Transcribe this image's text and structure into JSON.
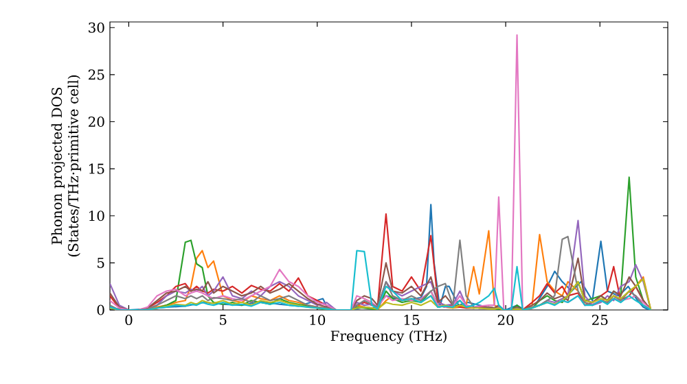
{
  "chart_data": {
    "type": "line",
    "xlabel": "Frequency (THz)",
    "ylabel": "Phonon projected DOS (States/THz·primitive cell)",
    "xlim": [
      -1,
      28.6
    ],
    "ylim": [
      0,
      30.6
    ],
    "xticks": [
      0,
      5,
      10,
      15,
      20,
      25
    ],
    "yticks": [
      0,
      5,
      10,
      15,
      20,
      25,
      30
    ],
    "series": [
      {
        "color": "#1f77b4",
        "x": [
          -1,
          0,
          1,
          2,
          3,
          4,
          5,
          6,
          7,
          8,
          9,
          10.3,
          10.6,
          11.8,
          12.5,
          13,
          13.65,
          14.5,
          15.5,
          15.8,
          16.03,
          16.2,
          16.5,
          16.8,
          17.0,
          17.5,
          18,
          19,
          19.5,
          20,
          20.6,
          21,
          21.5,
          22.2,
          22.6,
          23,
          23.5,
          24,
          24.6,
          25.05,
          25.4,
          26,
          26.5,
          27,
          27.3,
          27.6
        ],
        "values": [
          0.2,
          0,
          0.1,
          0.3,
          0.4,
          0.8,
          0.6,
          0.5,
          0.9,
          0.6,
          0.4,
          1.2,
          0,
          0,
          0.3,
          0.2,
          1.5,
          1.0,
          1.3,
          2.5,
          11.2,
          5.0,
          0.3,
          2.5,
          2.5,
          0.5,
          0.8,
          0.3,
          0.2,
          0,
          0.5,
          0,
          0.3,
          2.5,
          4.1,
          3.0,
          2.0,
          3.0,
          1.0,
          7.3,
          2.0,
          1.5,
          2.5,
          1.0,
          0.3,
          0
        ]
      },
      {
        "color": "#ff7f0e",
        "x": [
          0.5,
          1,
          1.5,
          2,
          2.5,
          3,
          3.3,
          3.6,
          3.9,
          4.2,
          4.5,
          5,
          5.5,
          6,
          6.5,
          7,
          7.5,
          8,
          8.5,
          9,
          9.5,
          10,
          10.5,
          11,
          11.8,
          12.1,
          12.5,
          12.9,
          13.2,
          13.65,
          14,
          14.5,
          15,
          15.5,
          16.03,
          16.4,
          16.8,
          17.2,
          17.57,
          17.9,
          18.3,
          18.6,
          19.1,
          19.4,
          19.63,
          19.9,
          20.3,
          20.6,
          20.9,
          21.4,
          21.8,
          22.2,
          22.6,
          23.0,
          23.3,
          23.84,
          24.2,
          24.6,
          25.05,
          25.4,
          25.73,
          26.1,
          26.55,
          26.9,
          27.3,
          27.7
        ],
        "values": [
          0,
          0.1,
          0.3,
          0.5,
          0.8,
          1.0,
          2.5,
          5.5,
          6.3,
          4.5,
          5.2,
          1.5,
          1.0,
          0.8,
          1.5,
          1.2,
          1.0,
          1.5,
          1.0,
          0.8,
          0.5,
          0.3,
          0.2,
          0,
          0,
          0.5,
          0.3,
          0.2,
          0,
          1.0,
          1.5,
          1.0,
          1.2,
          0.8,
          1.5,
          0.5,
          0.3,
          0.2,
          0.3,
          0.5,
          4.6,
          1.7,
          8.4,
          0.5,
          0.3,
          0,
          0,
          0,
          0,
          0.5,
          8.0,
          3.0,
          2.0,
          1.5,
          3.0,
          2.0,
          0.8,
          0.5,
          1.0,
          0.8,
          1.5,
          1.0,
          2.0,
          2.5,
          3.5,
          0
        ]
      },
      {
        "color": "#2ca02c",
        "x": [
          -1,
          -0.5,
          0,
          0.5,
          1,
          1.5,
          2,
          2.5,
          3,
          3.3,
          3.6,
          3.9,
          4.2,
          4.5,
          5,
          5.5,
          6,
          6.5,
          7,
          7.5,
          8,
          8.5,
          9,
          9.5,
          10,
          10.5,
          11,
          11.8,
          12.1,
          12.5,
          12.9,
          13.2,
          13.65,
          14,
          14.5,
          15,
          15.5,
          16.03,
          16.4,
          16.8,
          17.2,
          17.57,
          17.9,
          18.3,
          18.6,
          19.1,
          19.4,
          19.63,
          19.9,
          20.3,
          20.6,
          20.9,
          21.4,
          21.8,
          22.2,
          22.6,
          23.0,
          23.3,
          23.84,
          24.2,
          24.6,
          25.05,
          25.4,
          25.73,
          26.1,
          26.55,
          26.9,
          27.3,
          27.7
        ],
        "values": [
          0.3,
          0,
          0,
          0,
          0,
          0.2,
          0.5,
          1.0,
          7.2,
          7.4,
          4.9,
          4.5,
          1.5,
          0.8,
          0.6,
          0.8,
          0.5,
          1.0,
          0.8,
          0.6,
          1.2,
          0.8,
          0.6,
          0.4,
          0.2,
          0,
          0,
          0,
          0.3,
          0.2,
          0.1,
          0,
          2.0,
          1.2,
          0.8,
          1.0,
          0.8,
          2.0,
          0.5,
          0.3,
          0.4,
          0.5,
          0.3,
          0.2,
          0.3,
          0.2,
          0.1,
          0,
          0,
          0,
          0.5,
          0,
          0.2,
          1.0,
          1.5,
          1.0,
          0.8,
          1.5,
          3.0,
          1.0,
          1.2,
          1.5,
          1.0,
          2.0,
          1.5,
          14.1,
          3.5,
          1.0,
          0
        ]
      },
      {
        "color": "#d62728",
        "x": [
          -1,
          -0.5,
          0,
          0.5,
          1,
          1.5,
          2,
          2.5,
          3,
          3.3,
          3.6,
          3.9,
          4.2,
          4.5,
          5,
          5.5,
          6,
          6.5,
          7,
          7.5,
          8,
          8.5,
          9,
          9.5,
          10,
          10.5,
          11,
          11.8,
          12.1,
          12.5,
          12.9,
          13.2,
          13.65,
          14,
          14.5,
          15,
          15.5,
          16.03,
          16.4,
          16.8,
          17.2,
          17.57,
          17.9,
          18.3,
          18.6,
          19.1,
          19.4,
          19.63,
          19.9,
          20.3,
          20.6,
          20.9,
          21.4,
          21.8,
          22.2,
          22.6,
          23.0,
          23.3,
          23.84,
          24.2,
          24.6,
          25.05,
          25.4,
          25.73,
          26.1,
          26.55,
          26.9,
          27.3,
          27.7
        ],
        "values": [
          1.5,
          0.2,
          0,
          0,
          0.2,
          0.8,
          1.5,
          2.5,
          2.8,
          2.0,
          2.5,
          2.0,
          1.8,
          2.2,
          2.0,
          2.5,
          1.8,
          2.6,
          2.2,
          2.0,
          2.8,
          2.0,
          3.4,
          1.5,
          1.0,
          0.5,
          0,
          0,
          0.5,
          0.8,
          0.5,
          0.3,
          10.2,
          2.5,
          2.0,
          3.5,
          2.0,
          7.9,
          1.0,
          0.3,
          0.5,
          0.3,
          0.2,
          0.2,
          0.3,
          0.3,
          0.2,
          0.2,
          0,
          0,
          0.3,
          0,
          0.8,
          1.5,
          2.8,
          1.8,
          2.5,
          1.5,
          1.8,
          0.5,
          0.8,
          1.5,
          2.0,
          4.6,
          1.0,
          1.5,
          2.5,
          1.0,
          0
        ]
      },
      {
        "color": "#9467bd",
        "x": [
          -1,
          -0.5,
          0,
          0.5,
          1,
          1.5,
          2,
          2.5,
          3,
          3.3,
          3.6,
          3.9,
          4.2,
          4.5,
          5,
          5.5,
          6,
          6.5,
          7,
          7.5,
          8,
          8.5,
          9,
          9.5,
          10,
          10.5,
          11,
          11.8,
          12.1,
          12.5,
          12.9,
          13.2,
          13.65,
          14,
          14.5,
          15,
          15.5,
          16.03,
          16.4,
          16.8,
          17.2,
          17.57,
          17.9,
          18.3,
          18.6,
          19.1,
          19.4,
          19.63,
          19.9,
          20.3,
          20.6,
          20.9,
          21.4,
          21.8,
          22.2,
          22.6,
          23.0,
          23.3,
          23.84,
          24.2,
          24.6,
          25.05,
          25.4,
          25.73,
          26.1,
          26.55,
          26.9,
          27.3,
          27.7
        ],
        "values": [
          2.8,
          0.5,
          0,
          0,
          0.1,
          0.5,
          1.5,
          2.0,
          1.8,
          2.2,
          2.0,
          2.5,
          1.5,
          2.0,
          3.5,
          1.5,
          1.2,
          2.0,
          1.5,
          2.5,
          3.0,
          2.5,
          1.5,
          1.0,
          0.5,
          0.8,
          0,
          0,
          0.8,
          0.5,
          0.6,
          0.3,
          3.0,
          2.0,
          1.5,
          2.0,
          2.5,
          3.0,
          0.8,
          0.5,
          0.6,
          2.0,
          0.5,
          0.3,
          0.2,
          0.2,
          0.1,
          0.3,
          0,
          0,
          0.2,
          0,
          0.3,
          0.5,
          1.0,
          0.8,
          1.2,
          1.5,
          9.5,
          1.5,
          0.5,
          0.8,
          1.5,
          1.0,
          2.5,
          3.0,
          4.8,
          3.0,
          0
        ]
      },
      {
        "color": "#8c564b",
        "x": [
          -1,
          -0.5,
          0,
          0.5,
          1,
          1.5,
          2,
          2.5,
          3,
          3.3,
          3.6,
          3.9,
          4.2,
          4.5,
          5,
          5.5,
          6,
          6.5,
          7,
          7.5,
          8,
          8.5,
          9,
          9.5,
          10,
          10.5,
          11,
          11.8,
          12.1,
          12.5,
          12.9,
          13.2,
          13.65,
          14,
          14.5,
          15,
          15.5,
          16.03,
          16.4,
          16.8,
          17.2,
          17.57,
          17.9,
          18.3,
          18.6,
          19.1,
          19.4,
          19.63,
          19.9,
          20.3,
          20.6,
          20.9,
          21.4,
          21.8,
          22.2,
          22.6,
          23.0,
          23.3,
          23.84,
          24.2,
          24.6,
          25.05,
          25.4,
          25.73,
          26.1,
          26.55,
          26.9,
          27.3,
          27.7
        ],
        "values": [
          1.8,
          0.3,
          0,
          0,
          0.2,
          1.0,
          1.8,
          2.0,
          2.5,
          2.0,
          2.2,
          2.0,
          3.0,
          1.8,
          2.5,
          2.0,
          1.5,
          1.8,
          2.5,
          1.8,
          2.2,
          2.8,
          2.0,
          1.2,
          0.6,
          0.3,
          0,
          0,
          1.0,
          1.5,
          1.2,
          0.5,
          5.0,
          2.0,
          1.8,
          2.5,
          1.5,
          3.5,
          0.8,
          1.5,
          0.5,
          1.0,
          0.3,
          0.3,
          0.2,
          0.3,
          0.2,
          0.5,
          0,
          0,
          0.3,
          0,
          0.5,
          1.0,
          1.8,
          1.2,
          1.5,
          1.0,
          5.5,
          1.0,
          0.8,
          1.5,
          1.0,
          2.0,
          1.5,
          3.5,
          2.5,
          1.0,
          0
        ]
      },
      {
        "color": "#e377c2",
        "x": [
          -1,
          -0.5,
          0,
          0.5,
          1,
          1.5,
          2,
          2.5,
          3,
          3.3,
          3.6,
          3.9,
          4.2,
          4.5,
          5,
          5.5,
          6,
          6.5,
          7,
          7.5,
          8,
          8.5,
          9,
          9.5,
          10,
          10.5,
          11,
          11.8,
          12.1,
          12.5,
          12.9,
          13.2,
          13.65,
          14,
          14.5,
          15,
          15.5,
          16.03,
          16.4,
          16.8,
          17.2,
          17.57,
          17.9,
          18.3,
          18.6,
          19.1,
          19.4,
          19.63,
          19.9,
          20.3,
          20.6,
          20.9,
          21.4,
          21.8,
          22.2,
          22.6,
          23.0,
          23.3,
          23.84,
          24.2,
          24.6,
          25.05,
          25.4,
          25.73,
          26.1,
          26.55,
          26.9,
          27.3,
          27.7
        ],
        "values": [
          1.0,
          0.2,
          0,
          0,
          0.3,
          1.5,
          2.0,
          2.2,
          1.5,
          1.8,
          2.0,
          1.8,
          1.5,
          1.2,
          1.5,
          1.2,
          1.0,
          1.5,
          2.0,
          2.5,
          4.3,
          3.0,
          2.5,
          1.5,
          0.8,
          0.5,
          0,
          0,
          1.5,
          1.2,
          0.8,
          0.3,
          1.5,
          1.0,
          1.2,
          1.0,
          1.2,
          2.0,
          0.5,
          0.3,
          0.4,
          1.5,
          0.5,
          0.3,
          0.4,
          0.5,
          0.5,
          12.0,
          0,
          0,
          29.2,
          0,
          0.2,
          0.5,
          0.8,
          0.6,
          1.0,
          0.8,
          1.5,
          0.5,
          0.6,
          1.0,
          0.8,
          1.2,
          1.0,
          1.2,
          1.5,
          0.8,
          0
        ]
      },
      {
        "color": "#7f7f7f",
        "x": [
          -1,
          -0.5,
          0,
          0.5,
          1,
          1.5,
          2,
          2.5,
          3,
          3.3,
          3.6,
          3.9,
          4.2,
          4.5,
          5,
          5.5,
          6,
          6.5,
          7,
          7.5,
          8,
          8.5,
          9,
          9.5,
          10,
          10.5,
          11,
          11.8,
          12.1,
          12.5,
          12.9,
          13.2,
          13.65,
          14,
          14.5,
          15,
          15.5,
          16.03,
          16.4,
          16.8,
          17.2,
          17.57,
          17.9,
          18.3,
          18.6,
          19.1,
          19.4,
          19.63,
          19.9,
          20.3,
          20.6,
          20.9,
          21.4,
          21.8,
          22.2,
          22.6,
          23.0,
          23.3,
          23.84,
          24.2,
          24.6,
          25.05,
          25.4,
          25.73,
          26.1,
          26.55,
          26.9,
          27.3,
          27.7
        ],
        "values": [
          0.5,
          0,
          0,
          0,
          0.1,
          0.5,
          1.0,
          1.5,
          1.2,
          1.5,
          1.2,
          1.5,
          1.0,
          1.3,
          1.2,
          1.0,
          1.2,
          0.8,
          1.5,
          1.0,
          1.2,
          1.5,
          1.0,
          0.5,
          0.3,
          0.2,
          0,
          0,
          0.5,
          1.0,
          0.6,
          0.3,
          3.0,
          1.5,
          1.0,
          1.5,
          1.0,
          2.0,
          2.5,
          2.8,
          0.5,
          7.4,
          1.5,
          0.3,
          0.2,
          0.2,
          0.1,
          0.2,
          0,
          0,
          0.2,
          0,
          0.3,
          0.5,
          1.0,
          1.5,
          7.5,
          7.8,
          2.0,
          0.8,
          0.5,
          1.0,
          0.8,
          1.5,
          1.0,
          2.0,
          1.5,
          0.5,
          0
        ]
      },
      {
        "color": "#bcbd22",
        "x": [
          -1,
          -0.5,
          0,
          0.5,
          1,
          1.5,
          2,
          2.5,
          3,
          3.3,
          3.6,
          3.9,
          4.2,
          4.5,
          5,
          5.5,
          6,
          6.5,
          7,
          7.5,
          8,
          8.5,
          9,
          9.5,
          10,
          10.5,
          11,
          11.8,
          12.1,
          12.5,
          12.9,
          13.2,
          13.65,
          14,
          14.5,
          15,
          15.5,
          16.03,
          16.4,
          16.8,
          17.2,
          17.57,
          17.9,
          18.3,
          18.6,
          19.1,
          19.4,
          19.63,
          19.9,
          20.3,
          20.6,
          20.9,
          21.4,
          21.8,
          22.2,
          22.6,
          23.0,
          23.3,
          23.84,
          24.2,
          24.6,
          25.05,
          25.4,
          25.73,
          26.1,
          26.55,
          26.9,
          27.3,
          27.7
        ],
        "values": [
          0.2,
          0,
          0,
          0,
          0,
          0.2,
          0.4,
          0.6,
          0.5,
          0.8,
          0.6,
          1.0,
          0.8,
          0.7,
          1.0,
          0.6,
          0.8,
          0.5,
          1.0,
          0.8,
          1.0,
          0.7,
          0.5,
          0.3,
          0.2,
          0.1,
          0,
          0,
          0.2,
          0.3,
          0.2,
          0.1,
          0.8,
          0.6,
          0.5,
          0.8,
          0.5,
          1.0,
          0.3,
          0.5,
          0.2,
          0.5,
          0.3,
          0.2,
          0.2,
          0.1,
          0.1,
          0.2,
          0,
          0,
          0.1,
          0,
          0.2,
          0.5,
          0.8,
          0.6,
          1.0,
          1.5,
          3.0,
          1.0,
          0.8,
          1.2,
          1.0,
          1.5,
          1.2,
          2.0,
          2.5,
          3.3,
          0
        ]
      },
      {
        "color": "#17becf",
        "x": [
          -1,
          -0.5,
          0,
          0.5,
          1,
          1.5,
          2,
          2.5,
          3,
          3.3,
          3.6,
          3.9,
          4.2,
          4.5,
          5,
          5.5,
          6,
          6.5,
          7,
          7.5,
          8,
          8.5,
          9,
          9.5,
          10,
          10.5,
          11,
          11.8,
          12.1,
          12.5,
          12.9,
          13.2,
          13.65,
          14,
          14.5,
          15,
          15.5,
          16.03,
          16.4,
          16.8,
          17.2,
          17.57,
          17.9,
          18.3,
          18.6,
          19.1,
          19.4,
          19.63,
          19.9,
          20.3,
          20.6,
          20.9,
          21.4,
          21.8,
          22.2,
          22.6,
          23.0,
          23.3,
          23.84,
          24.2,
          24.6,
          25.05,
          25.4,
          25.73,
          26.1,
          26.55,
          26.9,
          27.3,
          27.7
        ],
        "values": [
          0.3,
          0,
          0,
          0,
          0,
          0.2,
          0.3,
          0.5,
          0.4,
          0.6,
          0.5,
          0.8,
          0.6,
          0.5,
          0.8,
          0.5,
          0.6,
          0.4,
          0.8,
          0.6,
          0.8,
          0.5,
          0.4,
          0.3,
          0.2,
          0.1,
          0,
          0,
          6.3,
          6.2,
          0.5,
          0.1,
          2.5,
          2.0,
          1.0,
          1.2,
          0.8,
          1.5,
          0.3,
          0.4,
          0.3,
          1.0,
          0.3,
          0.5,
          0.8,
          1.5,
          2.3,
          0.5,
          0,
          0,
          4.6,
          0,
          0.2,
          0.5,
          0.8,
          0.5,
          1.0,
          0.8,
          1.5,
          0.5,
          0.5,
          1.0,
          0.6,
          1.2,
          0.8,
          1.5,
          1.0,
          0.5,
          0
        ]
      }
    ]
  }
}
